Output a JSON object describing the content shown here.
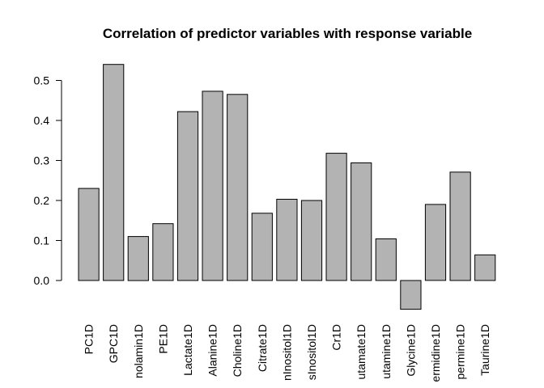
{
  "chart_data": {
    "type": "bar",
    "title": "Correlation of predictor variables with response variable",
    "xlabel": "",
    "ylabel": "",
    "categories": [
      "PC1D",
      "GPC1D",
      "nolamin1D",
      "PE1D",
      "Lactate1D",
      "Alanine1D",
      "Choline1D",
      "Citrate1D",
      "nInositol1D",
      "sInositol1D",
      "Cr1D",
      "utamate1D",
      "utamine1D",
      "Glycine1D",
      "ermidine1D",
      "permine1D",
      "Taurine1D"
    ],
    "values": [
      0.23,
      0.54,
      0.11,
      0.142,
      0.422,
      0.473,
      0.465,
      0.168,
      0.203,
      0.2,
      0.318,
      0.294,
      0.104,
      -0.072,
      0.19,
      0.271,
      0.064
    ],
    "ylim": [
      -0.07,
      0.54
    ],
    "yticks": [
      0.0,
      0.1,
      0.2,
      0.3,
      0.4,
      0.5
    ],
    "ytick_labels": [
      "0.0",
      "0.1",
      "0.2",
      "0.3",
      "0.4",
      "0.5"
    ],
    "bar_color": "#b3b3b3",
    "bar_edge_color": "#000000",
    "grid": false,
    "legend": "none"
  }
}
